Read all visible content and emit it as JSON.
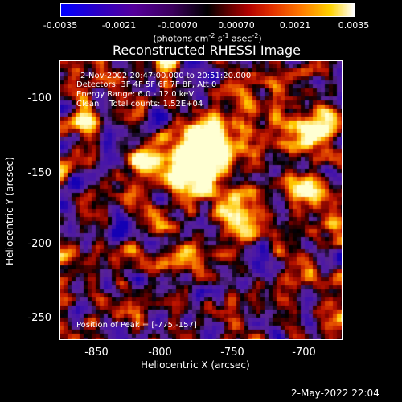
{
  "colorbar": {
    "ticks": [
      "-0.0035",
      "-0.0021",
      "-0.00070",
      "0.00070",
      "0.0021",
      "0.0035"
    ],
    "unit_text": "(photons cm",
    "unit_exp1": "-2",
    "unit_mid": " s",
    "unit_exp2": "-1",
    "unit_mid2": " asec",
    "unit_exp3": "-2",
    "unit_end": ")"
  },
  "image": {
    "title": "Reconstructed RHESSI Image",
    "time_range": "2-Nov-2002 20:47:00.000 to 20:51:20.000",
    "detectors": "Detectors: 3F 4F 5F 6F 7F 8F, Att 0",
    "energy_range": "Energy Range: 6.0 - 12.0 keV",
    "clean_counts": "Clean    Total counts: 1.52E+04",
    "peak_position": "Position of Peak = [-775,-157]",
    "x_label": "Heliocentric X (arcsec)",
    "y_label": "Heliocentric Y (arcsec)",
    "x_ticks": [
      "-850",
      "-800",
      "-750",
      "-700"
    ],
    "y_ticks": [
      "-100",
      "-150",
      "-200",
      "-250"
    ]
  },
  "footer": {
    "timestamp": "2-May-2022 22:04"
  },
  "colors": {
    "background": "#000000",
    "foreground": "#ffffff"
  }
}
